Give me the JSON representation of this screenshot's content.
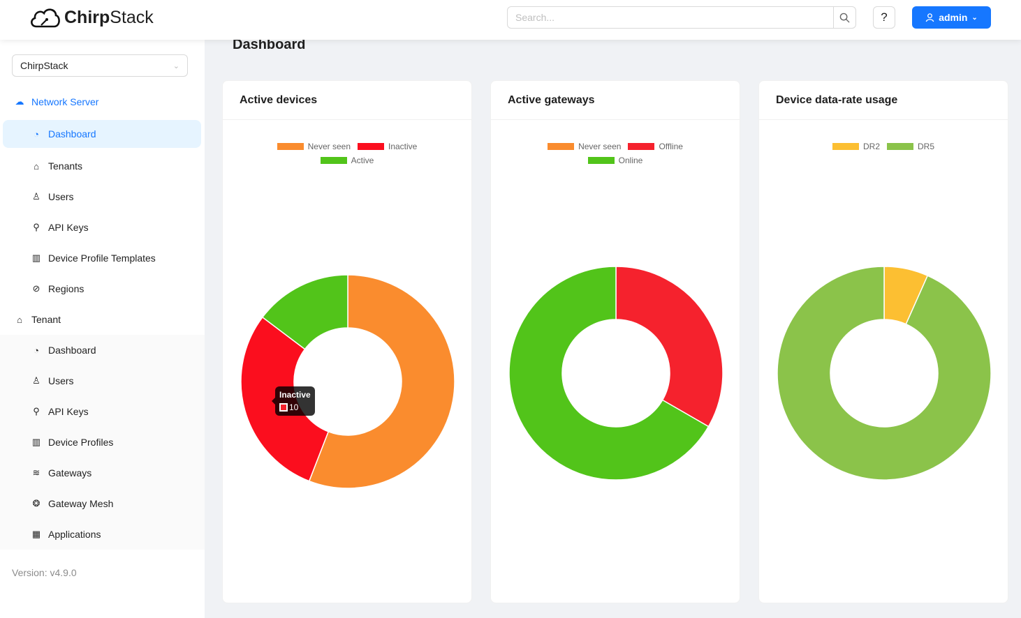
{
  "header": {
    "brand_bold": "Chirp",
    "brand_rest": "Stack",
    "search_placeholder": "Search...",
    "help_label": "?",
    "user_label": "admin"
  },
  "sidebar": {
    "tenant_select": "ChirpStack",
    "network_server": {
      "label": "Network Server",
      "items": [
        {
          "label": "Dashboard",
          "icon": "dashboard-icon"
        },
        {
          "label": "Tenants",
          "icon": "home-icon"
        },
        {
          "label": "Users",
          "icon": "user-icon"
        },
        {
          "label": "API Keys",
          "icon": "key-icon"
        },
        {
          "label": "Device Profile Templates",
          "icon": "controls-icon"
        },
        {
          "label": "Regions",
          "icon": "compass-icon"
        }
      ]
    },
    "tenant": {
      "label": "Tenant",
      "items": [
        {
          "label": "Dashboard",
          "icon": "dashboard-icon"
        },
        {
          "label": "Users",
          "icon": "user-icon"
        },
        {
          "label": "API Keys",
          "icon": "key-icon"
        },
        {
          "label": "Device Profiles",
          "icon": "controls-icon"
        },
        {
          "label": "Gateways",
          "icon": "wifi-icon"
        },
        {
          "label": "Gateway Mesh",
          "icon": "mesh-icon"
        },
        {
          "label": "Applications",
          "icon": "apps-icon"
        }
      ]
    },
    "version": "Version: v4.9.0"
  },
  "page": {
    "title": "Dashboard"
  },
  "chart_data": [
    {
      "type": "pie",
      "title": "Active devices",
      "labels": [
        "Never seen",
        "Inactive",
        "Active"
      ],
      "values": [
        19,
        10,
        5
      ],
      "colors": [
        "#fa8c2e",
        "#fb0e1e",
        "#52c41a"
      ],
      "legend": "top",
      "tooltip": {
        "label": "Inactive",
        "value": "10"
      }
    },
    {
      "type": "pie",
      "title": "Active gateways",
      "labels": [
        "Never seen",
        "Offline",
        "Online"
      ],
      "values": [
        0,
        1,
        2
      ],
      "colors": [
        "#fa8c2e",
        "#f5222d",
        "#52c41a"
      ],
      "legend": "top"
    },
    {
      "type": "pie",
      "title": "Device data-rate usage",
      "labels": [
        "DR2",
        "DR5"
      ],
      "values": [
        1,
        14
      ],
      "colors": [
        "#fcbf32",
        "#8bc34a"
      ],
      "legend": "top"
    }
  ]
}
